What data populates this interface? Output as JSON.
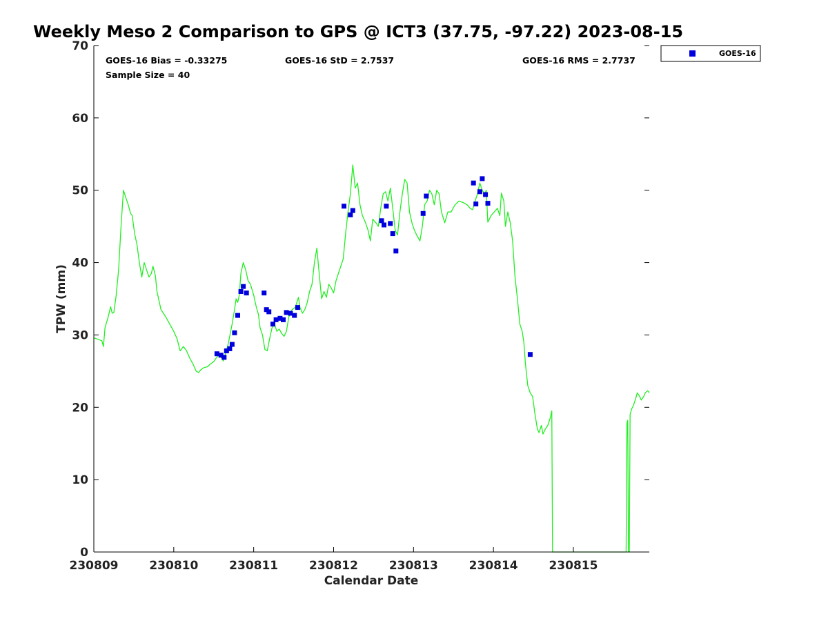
{
  "chart_data": {
    "type": "scatter",
    "title": "Weekly Meso 2 Comparison to GPS @ ICT3 (37.75, -97.22) 2023-08-15",
    "xlabel": "Calendar Date",
    "ylabel": "TPW (mm)",
    "xlim": [
      0,
      6.95
    ],
    "ylim": [
      0,
      70
    ],
    "x_ticks": [
      {
        "value": 0,
        "label": "230809"
      },
      {
        "value": 1,
        "label": "230810"
      },
      {
        "value": 2,
        "label": "230811"
      },
      {
        "value": 3,
        "label": "230812"
      },
      {
        "value": 4,
        "label": "230813"
      },
      {
        "value": 5,
        "label": "230814"
      },
      {
        "value": 6,
        "label": "230815"
      }
    ],
    "y_ticks": [
      0,
      10,
      20,
      30,
      40,
      50,
      60,
      70
    ],
    "grid": false,
    "legend": {
      "position": "top-right",
      "entries": [
        {
          "label": "GOES-16",
          "color": "#0000dd",
          "marker": "square"
        }
      ]
    },
    "stats": {
      "bias": "GOES-16 Bias = -0.33275",
      "std": "GOES-16 StD = 2.7537",
      "rms": "GOES-16 RMS = 2.7737",
      "sample_size": "Sample Size = 40"
    },
    "series": [
      {
        "name": "GOES-16",
        "kind": "scatter",
        "color": "#0000dd",
        "points": [
          [
            1.54,
            27.4
          ],
          [
            1.59,
            27.2
          ],
          [
            1.63,
            26.9
          ],
          [
            1.66,
            27.8
          ],
          [
            1.7,
            28.1
          ],
          [
            1.73,
            28.7
          ],
          [
            1.76,
            30.3
          ],
          [
            1.8,
            32.7
          ],
          [
            1.84,
            36.0
          ],
          [
            1.87,
            36.7
          ],
          [
            1.91,
            35.8
          ],
          [
            2.13,
            35.8
          ],
          [
            2.16,
            33.5
          ],
          [
            2.19,
            33.2
          ],
          [
            2.24,
            31.5
          ],
          [
            2.28,
            32.1
          ],
          [
            2.33,
            32.3
          ],
          [
            2.37,
            32.1
          ],
          [
            2.41,
            33.1
          ],
          [
            2.46,
            33.0
          ],
          [
            2.51,
            32.7
          ],
          [
            2.55,
            33.8
          ],
          [
            3.13,
            47.8
          ],
          [
            3.21,
            46.6
          ],
          [
            3.24,
            47.2
          ],
          [
            3.6,
            45.8
          ],
          [
            3.63,
            45.2
          ],
          [
            3.66,
            47.8
          ],
          [
            3.71,
            45.4
          ],
          [
            3.74,
            44.0
          ],
          [
            3.78,
            41.6
          ],
          [
            4.12,
            46.8
          ],
          [
            4.16,
            49.2
          ],
          [
            4.75,
            51.0
          ],
          [
            4.78,
            48.1
          ],
          [
            4.83,
            49.8
          ],
          [
            4.86,
            51.6
          ],
          [
            4.9,
            49.4
          ],
          [
            4.93,
            48.2
          ],
          [
            5.46,
            27.3
          ]
        ]
      },
      {
        "name": "",
        "kind": "line",
        "color": "#22ee22",
        "points": [
          [
            0.0,
            29.6
          ],
          [
            0.05,
            29.4
          ],
          [
            0.1,
            29.2
          ],
          [
            0.12,
            28.4
          ],
          [
            0.14,
            31.0
          ],
          [
            0.18,
            32.5
          ],
          [
            0.21,
            33.9
          ],
          [
            0.23,
            33.0
          ],
          [
            0.25,
            33.1
          ],
          [
            0.28,
            35.5
          ],
          [
            0.31,
            39.0
          ],
          [
            0.34,
            45.0
          ],
          [
            0.37,
            50.0
          ],
          [
            0.4,
            49.0
          ],
          [
            0.43,
            48.0
          ],
          [
            0.46,
            46.8
          ],
          [
            0.48,
            46.5
          ],
          [
            0.51,
            44.0
          ],
          [
            0.54,
            42.5
          ],
          [
            0.57,
            40.0
          ],
          [
            0.6,
            38.0
          ],
          [
            0.63,
            40.0
          ],
          [
            0.66,
            39.0
          ],
          [
            0.69,
            38.0
          ],
          [
            0.72,
            38.5
          ],
          [
            0.74,
            39.5
          ],
          [
            0.77,
            38.2
          ],
          [
            0.79,
            36.0
          ],
          [
            0.82,
            34.5
          ],
          [
            0.84,
            33.5
          ],
          [
            0.87,
            33.0
          ],
          [
            0.9,
            32.5
          ],
          [
            0.95,
            31.5
          ],
          [
            1.0,
            30.5
          ],
          [
            1.04,
            29.5
          ],
          [
            1.08,
            27.8
          ],
          [
            1.12,
            28.4
          ],
          [
            1.16,
            27.8
          ],
          [
            1.2,
            26.8
          ],
          [
            1.24,
            26.0
          ],
          [
            1.28,
            25.0
          ],
          [
            1.31,
            24.8
          ],
          [
            1.34,
            25.2
          ],
          [
            1.38,
            25.5
          ],
          [
            1.42,
            25.6
          ],
          [
            1.46,
            26.0
          ],
          [
            1.5,
            26.3
          ],
          [
            1.53,
            26.8
          ],
          [
            1.56,
            27.2
          ],
          [
            1.59,
            27.0
          ],
          [
            1.62,
            26.4
          ],
          [
            1.65,
            27.5
          ],
          [
            1.68,
            28.7
          ],
          [
            1.7,
            29.8
          ],
          [
            1.73,
            31.5
          ],
          [
            1.76,
            33.5
          ],
          [
            1.78,
            35.0
          ],
          [
            1.8,
            34.5
          ],
          [
            1.82,
            35.5
          ],
          [
            1.84,
            38.5
          ],
          [
            1.87,
            40.0
          ],
          [
            1.9,
            39.0
          ],
          [
            1.93,
            37.5
          ],
          [
            1.96,
            37.0
          ],
          [
            2.0,
            35.5
          ],
          [
            2.03,
            34.0
          ],
          [
            2.06,
            32.8
          ],
          [
            2.08,
            31.0
          ],
          [
            2.11,
            30.0
          ],
          [
            2.14,
            28.0
          ],
          [
            2.17,
            27.8
          ],
          [
            2.2,
            29.5
          ],
          [
            2.23,
            31.0
          ],
          [
            2.26,
            31.5
          ],
          [
            2.29,
            30.5
          ],
          [
            2.32,
            30.8
          ],
          [
            2.35,
            30.2
          ],
          [
            2.38,
            29.8
          ],
          [
            2.41,
            30.5
          ],
          [
            2.44,
            32.5
          ],
          [
            2.48,
            33.5
          ],
          [
            2.52,
            33.8
          ],
          [
            2.56,
            35.2
          ],
          [
            2.58,
            33.8
          ],
          [
            2.61,
            33.0
          ],
          [
            2.64,
            33.5
          ],
          [
            2.67,
            34.5
          ],
          [
            2.7,
            36.0
          ],
          [
            2.73,
            37.0
          ],
          [
            2.76,
            40.0
          ],
          [
            2.79,
            42.0
          ],
          [
            2.82,
            38.5
          ],
          [
            2.85,
            35.0
          ],
          [
            2.88,
            36.0
          ],
          [
            2.91,
            35.2
          ],
          [
            2.94,
            37.0
          ],
          [
            2.97,
            36.5
          ],
          [
            3.0,
            35.8
          ],
          [
            3.03,
            37.5
          ],
          [
            3.06,
            38.5
          ],
          [
            3.09,
            39.5
          ],
          [
            3.12,
            40.5
          ],
          [
            3.15,
            44.0
          ],
          [
            3.18,
            47.0
          ],
          [
            3.21,
            49.5
          ],
          [
            3.24,
            53.5
          ],
          [
            3.27,
            50.3
          ],
          [
            3.3,
            51.0
          ],
          [
            3.33,
            48.0
          ],
          [
            3.36,
            46.5
          ],
          [
            3.4,
            45.5
          ],
          [
            3.43,
            44.5
          ],
          [
            3.46,
            43.0
          ],
          [
            3.49,
            46.0
          ],
          [
            3.53,
            45.5
          ],
          [
            3.56,
            45.0
          ],
          [
            3.59,
            47.5
          ],
          [
            3.62,
            49.5
          ],
          [
            3.65,
            49.8
          ],
          [
            3.68,
            48.5
          ],
          [
            3.71,
            50.3
          ],
          [
            3.74,
            47.5
          ],
          [
            3.77,
            44.5
          ],
          [
            3.8,
            43.8
          ],
          [
            3.83,
            47.0
          ],
          [
            3.86,
            49.5
          ],
          [
            3.89,
            51.5
          ],
          [
            3.92,
            51.0
          ],
          [
            3.95,
            47.0
          ],
          [
            3.98,
            45.5
          ],
          [
            4.01,
            44.5
          ],
          [
            4.04,
            43.8
          ],
          [
            4.08,
            43.0
          ],
          [
            4.11,
            45.0
          ],
          [
            4.14,
            48.0
          ],
          [
            4.17,
            48.5
          ],
          [
            4.2,
            50.0
          ],
          [
            4.23,
            49.5
          ],
          [
            4.26,
            48.0
          ],
          [
            4.29,
            50.0
          ],
          [
            4.32,
            49.5
          ],
          [
            4.35,
            47.0
          ],
          [
            4.39,
            45.5
          ],
          [
            4.43,
            47.0
          ],
          [
            4.47,
            47.0
          ],
          [
            4.52,
            48.0
          ],
          [
            4.57,
            48.5
          ],
          [
            4.62,
            48.3
          ],
          [
            4.67,
            48.0
          ],
          [
            4.71,
            47.5
          ],
          [
            4.74,
            47.3
          ],
          [
            4.77,
            48.5
          ],
          [
            4.8,
            49.5
          ],
          [
            4.83,
            51.0
          ],
          [
            4.86,
            50.0
          ],
          [
            4.89,
            49.5
          ],
          [
            4.91,
            50.0
          ],
          [
            4.93,
            45.6
          ],
          [
            4.97,
            46.5
          ],
          [
            5.01,
            47.0
          ],
          [
            5.05,
            47.5
          ],
          [
            5.08,
            46.5
          ],
          [
            5.1,
            49.6
          ],
          [
            5.13,
            48.5
          ],
          [
            5.15,
            45.0
          ],
          [
            5.18,
            47.0
          ],
          [
            5.21,
            45.5
          ],
          [
            5.24,
            43.0
          ],
          [
            5.27,
            38.0
          ],
          [
            5.3,
            35.0
          ],
          [
            5.33,
            31.5
          ],
          [
            5.36,
            30.5
          ],
          [
            5.38,
            29.0
          ],
          [
            5.4,
            26.0
          ],
          [
            5.43,
            23.0
          ],
          [
            5.46,
            22.0
          ],
          [
            5.49,
            21.5
          ],
          [
            5.52,
            19.0
          ],
          [
            5.55,
            17.0
          ],
          [
            5.57,
            16.5
          ],
          [
            5.6,
            17.5
          ],
          [
            5.62,
            16.3
          ],
          [
            5.65,
            17.0
          ],
          [
            5.68,
            17.5
          ],
          [
            5.71,
            18.5
          ],
          [
            5.73,
            19.5
          ],
          [
            5.74,
            0.0
          ],
          [
            6.66,
            0.0
          ],
          [
            6.67,
            17.8
          ],
          [
            6.68,
            18.2
          ],
          [
            6.69,
            0.0
          ],
          [
            6.7,
            0.0
          ],
          [
            6.71,
            19.0
          ],
          [
            6.73,
            19.8
          ],
          [
            6.75,
            20.2
          ],
          [
            6.78,
            21.2
          ],
          [
            6.8,
            22.0
          ],
          [
            6.83,
            21.5
          ],
          [
            6.85,
            21.0
          ],
          [
            6.88,
            21.5
          ],
          [
            6.9,
            22.0
          ],
          [
            6.93,
            22.3
          ],
          [
            6.95,
            22.0
          ]
        ]
      }
    ]
  }
}
